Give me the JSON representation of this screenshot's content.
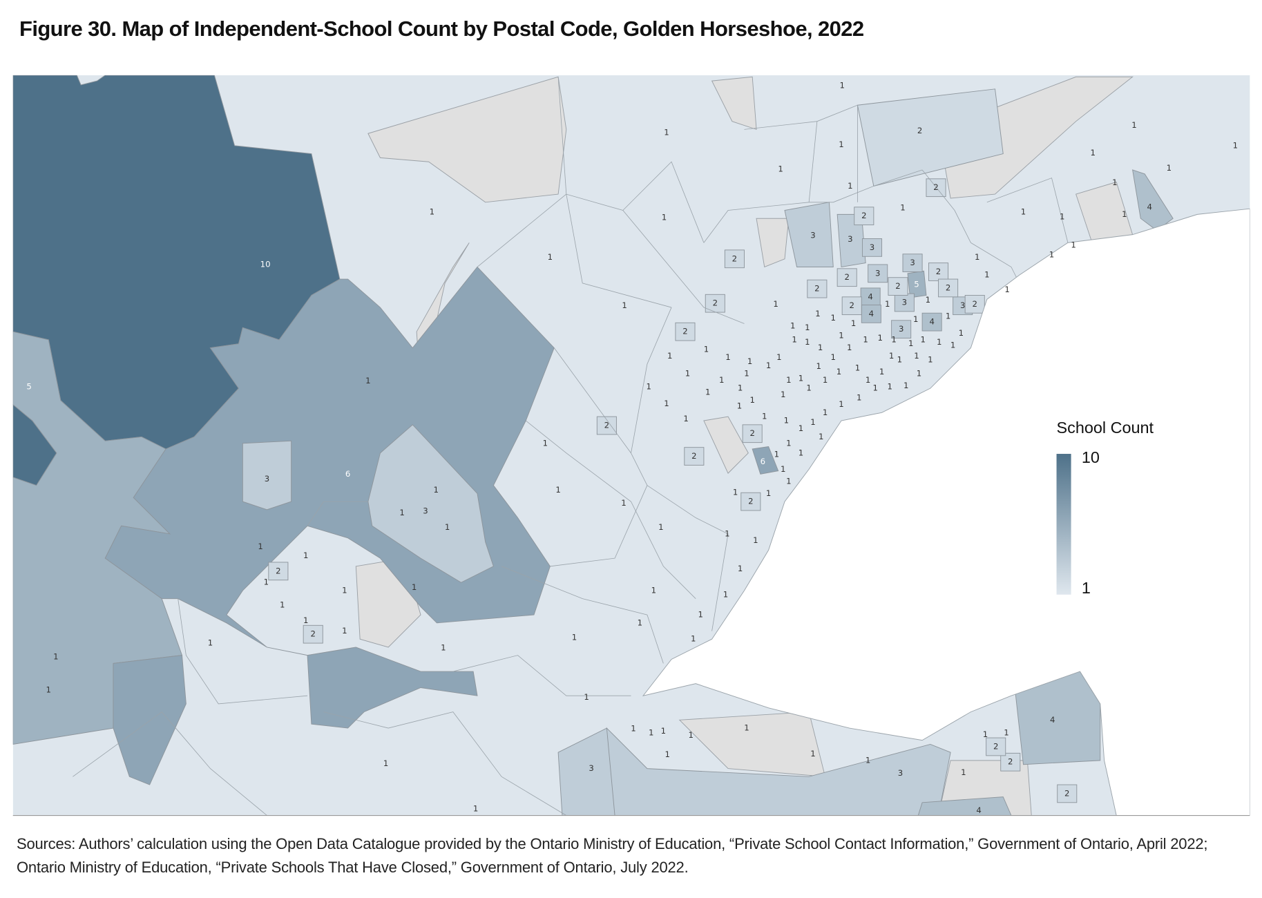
{
  "title": "Figure 30. Map of Independent-School Count by Postal Code, Golden Horseshoe, 2022",
  "legend": {
    "title": "School Count",
    "max": 10,
    "min": 1,
    "min_color": "#dfe7ee",
    "max_color": "#4e7189"
  },
  "regions": [
    10,
    5,
    6,
    3,
    3,
    4,
    4,
    3,
    3,
    4,
    2,
    6,
    5,
    3,
    3,
    1,
    1,
    1,
    1,
    1,
    1,
    1,
    2,
    1,
    1,
    1,
    1,
    2,
    3,
    3,
    3,
    2,
    2,
    2,
    2,
    2,
    2,
    4,
    4,
    4,
    3,
    3,
    3,
    2,
    2,
    2,
    2,
    1,
    1,
    1,
    1,
    1,
    1,
    1,
    1,
    1,
    1,
    1,
    1,
    1,
    1,
    2,
    1,
    1,
    1,
    1,
    2,
    2,
    1,
    1,
    2,
    1,
    1,
    1,
    1,
    1,
    1,
    1,
    1,
    1,
    1,
    1,
    1,
    1,
    1,
    1,
    1,
    1,
    1,
    2,
    1,
    1,
    1,
    1,
    1,
    2,
    1,
    1,
    1,
    1,
    1,
    1,
    1,
    1,
    1,
    1,
    1,
    1,
    1,
    2,
    1,
    1,
    2,
    2,
    1,
    1,
    1,
    1,
    1,
    1,
    1,
    1,
    1,
    1,
    1,
    1,
    1,
    1,
    1,
    1,
    1,
    1,
    1,
    1,
    1,
    1,
    1,
    1,
    1,
    1,
    1,
    1,
    1,
    1,
    1,
    1,
    1,
    1,
    1,
    1,
    1,
    1,
    1,
    1,
    1,
    1,
    1,
    1,
    1,
    1,
    1,
    1,
    1,
    1,
    1,
    1,
    1,
    1,
    1,
    1,
    1,
    1,
    1,
    1,
    1,
    1,
    1,
    1,
    1,
    1,
    1,
    1,
    1,
    1
  ],
  "source": "Sources: Authors’ calculation using the Open Data Catalogue provided by the Ontario Ministry of Education, “Private School Contact Information,” Government of Ontario, April 2022; Ontario Ministry of Education, “Private Schools That Have Closed,” Government of Ontario, July 2022."
}
